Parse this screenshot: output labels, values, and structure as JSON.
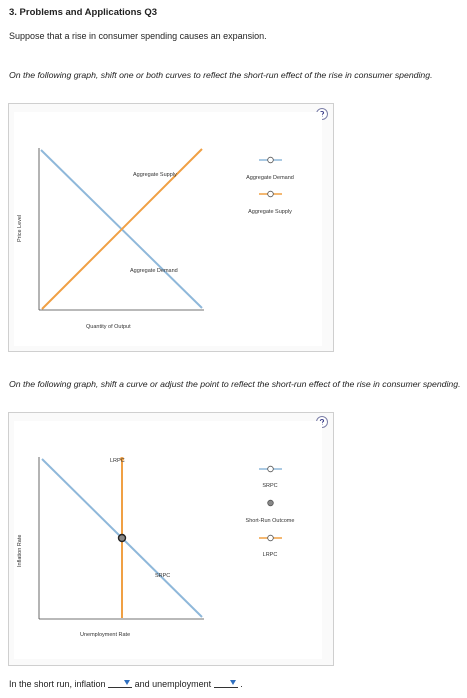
{
  "header": {
    "title": "3. Problems and Applications Q3",
    "intro": "Suppose that a rise in consumer spending causes an expansion."
  },
  "graph1": {
    "instruction": "On the following graph, shift one or both curves to reflect the short-run effect of the rise in consumer spending.",
    "help": "?",
    "y_axis_label": "Price Level",
    "x_axis_label": "Quantity of Output",
    "curve_labels": {
      "supply": "Aggregate Supply",
      "demand": "Aggregate Demand"
    },
    "legend": [
      {
        "label": "Aggregate Demand",
        "icon": "demand-line-tool-icon",
        "color": "#8fb8da"
      },
      {
        "label": "Aggregate Supply",
        "icon": "supply-line-tool-icon",
        "color": "#f0a044"
      }
    ]
  },
  "graph2": {
    "instruction": "On the following graph, shift a curve or adjust the point to reflect the short-run effect of the rise in consumer spending.",
    "help": "?",
    "y_axis_label": "Inflation Rate",
    "x_axis_label": "Unemployment Rate",
    "curve_labels": {
      "lrpc": "LRPC",
      "srpc": "SRPC"
    },
    "legend": [
      {
        "label": "SRPC",
        "icon": "srpc-line-tool-icon",
        "color": "#8fb8da"
      },
      {
        "label": "Short-Run Outcome",
        "icon": "outcome-point-tool-icon",
        "color": "#777777"
      },
      {
        "label": "LRPC",
        "icon": "lrpc-line-tool-icon",
        "color": "#f0a044"
      }
    ]
  },
  "answer": {
    "prefix": "In the short run, inflation",
    "middle": "and unemployment",
    "suffix": ".",
    "inflation_selected": "",
    "unemployment_selected": ""
  }
}
